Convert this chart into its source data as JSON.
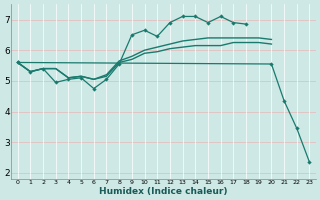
{
  "xlabel": "Humidex (Indice chaleur)",
  "background_color": "#cde8e5",
  "grid_color": "#f0c8c8",
  "line_color": "#1a7a6e",
  "ylim": [
    1.8,
    7.5
  ],
  "xlim": [
    -0.5,
    23.5
  ],
  "yticks": [
    2,
    3,
    4,
    5,
    6,
    7
  ],
  "series": [
    {
      "x": [
        0,
        1,
        2,
        3,
        4,
        5,
        6,
        7,
        8,
        9,
        10,
        11,
        12,
        13,
        14,
        15,
        16,
        17,
        18,
        19,
        20
      ],
      "y": [
        5.6,
        5.3,
        5.4,
        5.4,
        5.1,
        5.15,
        5.05,
        5.15,
        5.6,
        5.7,
        5.9,
        5.95,
        6.05,
        6.1,
        6.15,
        6.15,
        6.15,
        6.25,
        6.25,
        6.25,
        6.2
      ],
      "marker": false,
      "lw": 1.0
    },
    {
      "x": [
        0,
        1,
        2,
        3,
        4,
        5,
        6,
        7,
        8,
        9,
        10,
        11,
        12,
        13,
        14,
        15,
        16,
        17,
        18,
        19,
        20
      ],
      "y": [
        5.6,
        5.3,
        5.4,
        5.4,
        5.1,
        5.15,
        5.05,
        5.2,
        5.65,
        5.8,
        6.0,
        6.1,
        6.2,
        6.3,
        6.35,
        6.4,
        6.4,
        6.4,
        6.4,
        6.4,
        6.35
      ],
      "marker": false,
      "lw": 1.0
    },
    {
      "x": [
        0,
        1,
        2,
        3,
        4,
        5,
        6,
        7,
        8,
        9,
        10,
        11,
        12,
        13,
        14,
        15,
        16,
        17,
        18
      ],
      "y": [
        5.6,
        5.3,
        5.4,
        4.95,
        5.05,
        5.1,
        4.75,
        5.05,
        5.55,
        6.5,
        6.65,
        6.45,
        6.9,
        7.1,
        7.1,
        6.9,
        7.1,
        6.9,
        6.85
      ],
      "marker": true,
      "lw": 0.9
    },
    {
      "x": [
        0,
        20,
        21,
        22,
        23
      ],
      "y": [
        5.6,
        5.55,
        4.35,
        3.45,
        2.35
      ],
      "marker": true,
      "lw": 0.9
    }
  ]
}
